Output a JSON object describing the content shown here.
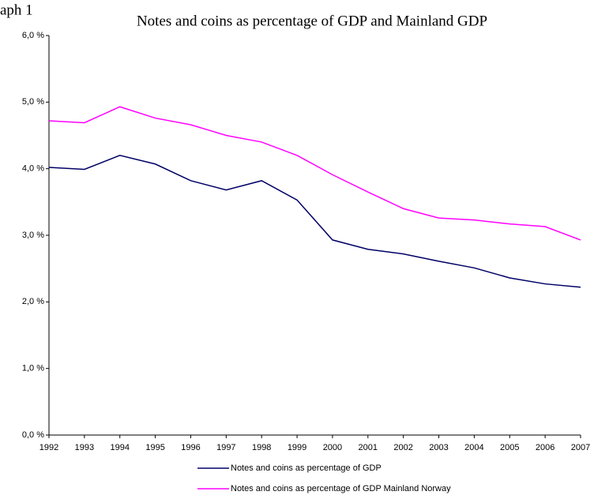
{
  "chart_data": {
    "type": "line",
    "annotation": "aph 1",
    "title": "Notes and coins as percentage of GDP and Mainland GDP",
    "categories": [
      "1992",
      "1993",
      "1994",
      "1995",
      "1996",
      "1997",
      "1998",
      "1999",
      "2000",
      "2001",
      "2002",
      "2003",
      "2004",
      "2005",
      "2006",
      "2007"
    ],
    "series": [
      {
        "name": "Notes and coins as percentage of GDP",
        "color": "#000066",
        "values": [
          4.02,
          3.99,
          4.2,
          4.07,
          3.82,
          3.68,
          3.82,
          3.53,
          2.93,
          2.79,
          2.72,
          2.61,
          2.51,
          2.36,
          2.27,
          2.22
        ]
      },
      {
        "name": "Notes and coins as percentage of GDP Mainland Norway",
        "color": "#ff00ff",
        "values": [
          4.72,
          4.69,
          4.93,
          4.76,
          4.66,
          4.5,
          4.4,
          4.2,
          3.91,
          3.65,
          3.4,
          3.26,
          3.23,
          3.17,
          3.13,
          2.93
        ]
      }
    ],
    "ylim": [
      0,
      6
    ],
    "yticks": [
      {
        "value": 0,
        "label": "0,0 %"
      },
      {
        "value": 1,
        "label": "1,0 %"
      },
      {
        "value": 2,
        "label": "2,0 %"
      },
      {
        "value": 3,
        "label": "3,0 %"
      },
      {
        "value": 4,
        "label": "4,0 %"
      },
      {
        "value": 5,
        "label": "5,0 %"
      },
      {
        "value": 6,
        "label": "6,0 %"
      }
    ],
    "grid": false,
    "legend": "bottom"
  }
}
